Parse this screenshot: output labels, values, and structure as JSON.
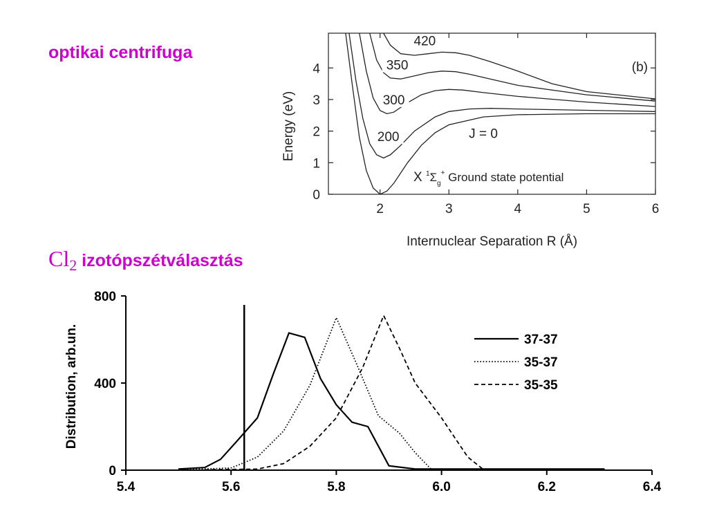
{
  "headings": {
    "top": "optikai centrifuga",
    "middle_formula_main": "Cl",
    "middle_formula_sub": "2",
    "middle_text": " izotópszétválasztás"
  },
  "chart_data": [
    {
      "type": "line",
      "panel_label": "(b)",
      "xlabel": "Internuclear Separation R (Å)",
      "ylabel": "Energy (eV)",
      "xlim": [
        1.25,
        6
      ],
      "ylim": [
        0,
        5.1
      ],
      "x_ticks": [
        2,
        3,
        4,
        5,
        6
      ],
      "y_ticks": [
        0,
        1,
        2,
        3,
        4
      ],
      "grid": false,
      "annotation": {
        "prefix": "X ",
        "sup": "1",
        "symbol": "Σ",
        "sub": "g",
        "sup2": "+",
        "rest": " Ground state potential"
      },
      "series": [
        {
          "name": "J = 0",
          "x": [
            1.5,
            1.6,
            1.7,
            1.8,
            1.9,
            2.0,
            2.1,
            2.2,
            2.4,
            2.6,
            2.8,
            3.0,
            3.5,
            4.0,
            5.0,
            6.0
          ],
          "y": [
            5.1,
            3.4,
            1.8,
            0.75,
            0.2,
            0.0,
            0.1,
            0.35,
            1.0,
            1.55,
            1.95,
            2.2,
            2.45,
            2.52,
            2.55,
            2.55
          ]
        },
        {
          "name": "200",
          "x": [
            1.55,
            1.65,
            1.75,
            1.85,
            1.95,
            2.05,
            2.15,
            2.3,
            2.5,
            2.8,
            3.0,
            3.3,
            3.6,
            4.0,
            5.0,
            6.0
          ],
          "y": [
            5.1,
            3.6,
            2.4,
            1.6,
            1.25,
            1.15,
            1.25,
            1.55,
            2.0,
            2.45,
            2.62,
            2.7,
            2.72,
            2.7,
            2.66,
            2.62
          ]
        },
        {
          "name": "300",
          "x": [
            1.7,
            1.8,
            1.9,
            2.0,
            2.1,
            2.2,
            2.4,
            2.6,
            2.8,
            3.0,
            3.2,
            3.5,
            4.0,
            5.0,
            6.0
          ],
          "y": [
            5.1,
            3.9,
            3.05,
            2.65,
            2.55,
            2.6,
            2.9,
            3.15,
            3.28,
            3.32,
            3.3,
            3.22,
            3.1,
            2.92,
            2.78
          ]
        },
        {
          "name": "350",
          "x": [
            1.85,
            1.95,
            2.05,
            2.15,
            2.3,
            2.5,
            2.7,
            2.9,
            3.1,
            3.3,
            3.6,
            4.0,
            5.0,
            6.0
          ],
          "y": [
            5.1,
            4.25,
            3.85,
            3.68,
            3.65,
            3.75,
            3.85,
            3.9,
            3.88,
            3.8,
            3.65,
            3.45,
            3.15,
            2.95
          ]
        },
        {
          "name": "420",
          "x": [
            2.05,
            2.15,
            2.3,
            2.5,
            2.7,
            2.9,
            3.1,
            3.3,
            3.6,
            4.0,
            4.5,
            5.0,
            6.0
          ],
          "y": [
            5.1,
            4.72,
            4.45,
            4.4,
            4.45,
            4.5,
            4.48,
            4.4,
            4.2,
            3.9,
            3.5,
            3.25,
            3.02
          ]
        }
      ]
    },
    {
      "type": "line",
      "xlabel": "",
      "ylabel": "Distribution, arb.un.",
      "xlim": [
        5.4,
        6.4
      ],
      "ylim": [
        0,
        800
      ],
      "x_tick_labels": [
        "5.4",
        "5.6",
        "5.8",
        "6.0",
        "6.2",
        "6.4"
      ],
      "y_tick_labels": [
        "0",
        "400",
        "800"
      ],
      "grid": false,
      "legend": "right",
      "vertical_marker_x": 5.625,
      "series": [
        {
          "name": "37-37",
          "style": "solid",
          "x": [
            5.5,
            5.55,
            5.58,
            5.61,
            5.65,
            5.68,
            5.71,
            5.74,
            5.77,
            5.8,
            5.83,
            5.86,
            5.9,
            5.95,
            6.0,
            6.1,
            6.2,
            6.31
          ],
          "y": [
            5,
            12,
            50,
            130,
            240,
            440,
            630,
            610,
            420,
            300,
            220,
            200,
            20,
            5,
            5,
            5,
            5,
            5
          ]
        },
        {
          "name": "35-37",
          "style": "dotted",
          "x": [
            5.5,
            5.6,
            5.65,
            5.7,
            5.75,
            5.8,
            5.84,
            5.88,
            5.92,
            5.95,
            5.98,
            6.0
          ],
          "y": [
            2,
            10,
            60,
            180,
            390,
            700,
            480,
            250,
            170,
            80,
            5,
            2
          ]
        },
        {
          "name": "35-35",
          "style": "dashed",
          "x": [
            5.55,
            5.65,
            5.7,
            5.75,
            5.8,
            5.85,
            5.89,
            5.92,
            5.95,
            6.0,
            6.05,
            6.08,
            6.15,
            6.3
          ],
          "y": [
            2,
            5,
            30,
            110,
            240,
            470,
            710,
            560,
            400,
            240,
            60,
            2,
            2,
            2
          ]
        }
      ]
    }
  ]
}
